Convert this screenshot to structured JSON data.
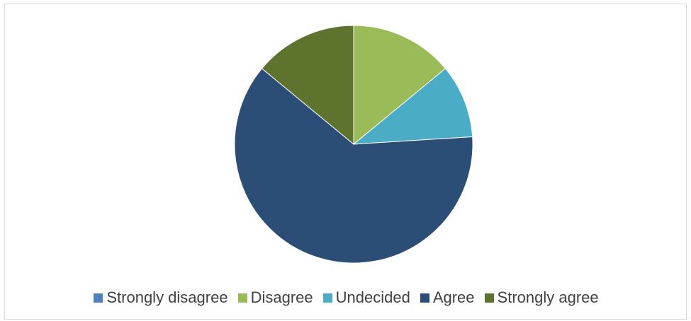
{
  "chart_data": {
    "type": "pie",
    "title": "",
    "legend_position": "bottom",
    "slices": [
      {
        "label": "Strongly disagree",
        "value": 0,
        "color": "#4f81bd"
      },
      {
        "label": "Disagree",
        "value": 14,
        "color": "#9bbb59"
      },
      {
        "label": "Undecided",
        "value": 10,
        "color": "#4bacc6"
      },
      {
        "label": "Agree",
        "value": 62,
        "color": "#2c4d75"
      },
      {
        "label": "Strongly agree",
        "value": 14,
        "color": "#5e732e"
      }
    ]
  }
}
